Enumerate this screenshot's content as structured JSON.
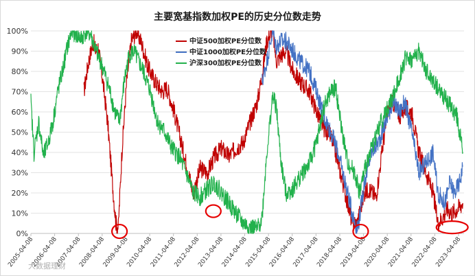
{
  "chart_data": {
    "type": "line",
    "title": "主要宽基指数加权PE的历史分位数走势",
    "ylim": [
      0,
      100
    ],
    "y_ticks": [
      "0%",
      "10%",
      "20%",
      "30%",
      "40%",
      "50%",
      "60%",
      "70%",
      "80%",
      "90%",
      "100%"
    ],
    "x_range": [
      2005.27,
      2023.5
    ],
    "x_ticks": [
      "2005-04-08",
      "2006-04-08",
      "2007-04-08",
      "2008-04-08",
      "2009-04-08",
      "2010-04-08",
      "2011-04-08",
      "2012-04-08",
      "2013-04-08",
      "2014-04-08",
      "2015-04-08",
      "2016-04-08",
      "2017-04-08",
      "2018-04-08",
      "2019-04-08",
      "2020-04-08",
      "2021-04-08",
      "2022-04-08",
      "2023-04-08"
    ],
    "grid": "horizontal",
    "legend_position": "top-center",
    "watermark": "大数据理财",
    "series": [
      {
        "name": "中证500加权PE分位数",
        "color": "#c00000",
        "x": [
          2007.5,
          2007.7,
          2007.9,
          2008.0,
          2008.1,
          2008.3,
          2008.5,
          2008.7,
          2008.85,
          2008.95,
          2009.1,
          2009.3,
          2009.5,
          2009.7,
          2009.9,
          2010.2,
          2010.5,
          2010.8,
          2011.0,
          2011.3,
          2011.6,
          2011.9,
          2012.1,
          2012.4,
          2012.7,
          2013.0,
          2013.3,
          2013.6,
          2013.9,
          2014.2,
          2014.5,
          2014.8,
          2015.0,
          2015.2,
          2015.45,
          2015.6,
          2015.8,
          2016.0,
          2016.3,
          2016.6,
          2017.0,
          2017.3,
          2017.6,
          2017.9,
          2018.2,
          2018.5,
          2018.8,
          2019.0,
          2019.1,
          2019.3,
          2019.5,
          2019.8,
          2020.1,
          2020.3,
          2020.5,
          2020.8,
          2021.0,
          2021.3,
          2021.6,
          2021.9,
          2022.2,
          2022.4,
          2022.6,
          2022.8,
          2023.0,
          2023.2,
          2023.45
        ],
        "values": [
          70,
          85,
          95,
          90,
          92,
          75,
          55,
          25,
          5,
          3,
          40,
          75,
          95,
          100,
          95,
          82,
          75,
          70,
          72,
          60,
          45,
          30,
          20,
          32,
          30,
          38,
          42,
          38,
          42,
          45,
          55,
          65,
          78,
          95,
          100,
          85,
          88,
          90,
          80,
          75,
          70,
          60,
          52,
          48,
          35,
          20,
          5,
          5,
          10,
          20,
          22,
          18,
          45,
          60,
          65,
          58,
          62,
          60,
          40,
          30,
          20,
          5,
          8,
          12,
          10,
          12,
          15
        ]
      },
      {
        "name": "中证1000加权PE分位数",
        "color": "#4472c4",
        "x": [
          2015.0,
          2015.2,
          2015.45,
          2015.6,
          2015.8,
          2016.0,
          2016.3,
          2016.6,
          2017.0,
          2017.3,
          2017.6,
          2017.9,
          2018.2,
          2018.5,
          2018.8,
          2019.0,
          2019.1,
          2019.3,
          2019.6,
          2019.9,
          2020.2,
          2020.5,
          2020.8,
          2021.0,
          2021.3,
          2021.6,
          2021.9,
          2022.2,
          2022.4,
          2022.7,
          2022.9,
          2023.1,
          2023.3,
          2023.45
        ],
        "values": [
          75,
          85,
          100,
          92,
          95,
          95,
          90,
          85,
          80,
          70,
          58,
          50,
          40,
          25,
          10,
          2,
          8,
          25,
          40,
          45,
          55,
          65,
          60,
          65,
          50,
          30,
          35,
          40,
          20,
          15,
          25,
          20,
          25,
          33
        ]
      },
      {
        "name": "沪深300加权PE分位数",
        "color": "#22b14c",
        "x": [
          2005.27,
          2005.4,
          2005.6,
          2005.8,
          2006.0,
          2006.2,
          2006.4,
          2006.6,
          2006.8,
          2007.0,
          2007.2,
          2007.4,
          2007.6,
          2007.8,
          2008.0,
          2008.2,
          2008.4,
          2008.6,
          2008.8,
          2009.0,
          2009.2,
          2009.4,
          2009.6,
          2009.8,
          2010.0,
          2010.3,
          2010.6,
          2010.9,
          2011.2,
          2011.5,
          2011.8,
          2012.1,
          2012.4,
          2012.7,
          2013.0,
          2013.3,
          2013.6,
          2013.9,
          2014.2,
          2014.5,
          2014.8,
          2015.0,
          2015.2,
          2015.45,
          2015.6,
          2015.8,
          2016.0,
          2016.3,
          2016.6,
          2017.0,
          2017.3,
          2017.6,
          2017.9,
          2018.1,
          2018.3,
          2018.6,
          2018.9,
          2019.1,
          2019.4,
          2019.7,
          2020.0,
          2020.3,
          2020.6,
          2020.9,
          2021.1,
          2021.3,
          2021.6,
          2021.9,
          2022.2,
          2022.5,
          2022.8,
          2023.0,
          2023.2,
          2023.45
        ],
        "values": [
          65,
          40,
          55,
          38,
          45,
          55,
          70,
          80,
          92,
          100,
          98,
          96,
          100,
          98,
          90,
          85,
          78,
          70,
          60,
          55,
          75,
          88,
          90,
          85,
          80,
          70,
          55,
          50,
          42,
          38,
          30,
          20,
          18,
          22,
          25,
          20,
          15,
          10,
          5,
          3,
          2,
          8,
          40,
          68,
          62,
          35,
          20,
          22,
          28,
          35,
          45,
          62,
          70,
          72,
          55,
          35,
          30,
          20,
          35,
          45,
          55,
          62,
          70,
          82,
          88,
          85,
          90,
          80,
          75,
          70,
          65,
          62,
          58,
          40
        ]
      }
    ],
    "annotations": "red ellipses highlighting lows near 2009-01, 2012-12, 2019-01 and 2022-10"
  }
}
